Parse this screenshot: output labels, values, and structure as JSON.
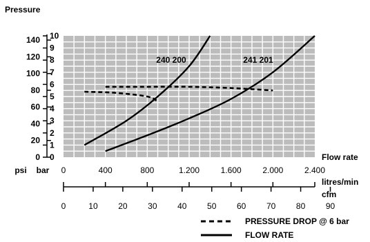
{
  "chart_data": {
    "type": "line",
    "title": "Pressure",
    "xlabel": "Flow rate",
    "psi_label": "psi",
    "bar_label": "bar",
    "flow_ticks": [
      "0",
      "400",
      "800",
      "1.200",
      "1.600",
      "2.000",
      "2.400"
    ],
    "flow_unit": "litres/min",
    "cfm_label": "cfm",
    "cfm_ticks": [
      "0",
      "10",
      "20",
      "30",
      "40",
      "50",
      "60",
      "70",
      "80",
      "90"
    ],
    "psi_ticks": [
      "0",
      "20",
      "40",
      "60",
      "80",
      "100",
      "120",
      "140"
    ],
    "bar_ticks": [
      "0",
      "1",
      "2",
      "3",
      "4",
      "5",
      "6",
      "7",
      "8",
      "9",
      "10"
    ],
    "xlim": [
      0,
      2400
    ],
    "ylim_bar": [
      0,
      10
    ],
    "grid": true,
    "series": [
      {
        "name": "240 200",
        "style": "solid",
        "x": [
          200,
          600,
          900,
          1200,
          1400
        ],
        "y": [
          1.0,
          3.0,
          5.0,
          7.5,
          10.0
        ]
      },
      {
        "name": "241 201",
        "style": "solid",
        "x": [
          400,
          800,
          1200,
          1600,
          2000,
          2400
        ],
        "y": [
          0.5,
          1.8,
          3.2,
          4.8,
          7.0,
          10.0
        ]
      },
      {
        "name": "240 200 pressure drop",
        "style": "dashed",
        "x": [
          200,
          500,
          800,
          900
        ],
        "y": [
          5.4,
          5.3,
          5.0,
          4.6
        ]
      },
      {
        "name": "241 201 pressure drop",
        "style": "dashed",
        "x": [
          400,
          800,
          1200,
          1600,
          2000
        ],
        "y": [
          5.8,
          5.8,
          5.8,
          5.7,
          5.5
        ]
      }
    ],
    "legend": [
      {
        "label": "PRESSURE DROP @ 6 bar",
        "style": "dashed"
      },
      {
        "label": "FLOW RATE",
        "style": "solid"
      }
    ],
    "legend_position": "bottom-right",
    "colors": {
      "plot_bg": "#bcbcbc",
      "grid": "#ffffff",
      "lines": "#000000"
    }
  }
}
